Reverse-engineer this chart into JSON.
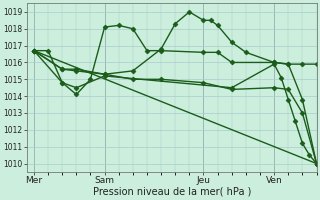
{
  "xlabel": "Pression niveau de la mer( hPa )",
  "bg_color": "#cceedd",
  "grid_color": "#aacccc",
  "line_color": "#1a5c1a",
  "ylim": [
    1009.5,
    1019.5
  ],
  "yticks": [
    1010,
    1011,
    1012,
    1013,
    1014,
    1015,
    1016,
    1017,
    1018,
    1019
  ],
  "xtick_labels": [
    "Mer",
    "Sam",
    "Jeu",
    "Ven"
  ],
  "xtick_positions": [
    0,
    5,
    12,
    17
  ],
  "xlim": [
    -0.5,
    20
  ],
  "lines": [
    {
      "x": [
        0,
        1,
        2,
        3,
        4,
        5,
        6,
        7,
        8,
        9,
        12,
        13,
        14,
        17,
        18,
        19,
        20
      ],
      "y": [
        1016.7,
        1016.7,
        1014.8,
        1014.1,
        1015.0,
        1018.1,
        1018.2,
        1018.0,
        1016.7,
        1016.7,
        1016.6,
        1016.6,
        1016.0,
        1016.0,
        1015.9,
        1015.9,
        1015.9
      ]
    },
    {
      "x": [
        0,
        2,
        3,
        5,
        7,
        9,
        10,
        11,
        12,
        12.5,
        13,
        14,
        15,
        17,
        18,
        19,
        20
      ],
      "y": [
        1016.7,
        1015.6,
        1015.6,
        1015.3,
        1015.5,
        1016.8,
        1018.3,
        1019.0,
        1018.5,
        1018.5,
        1018.2,
        1017.2,
        1016.6,
        1016.0,
        1015.9,
        1013.8,
        1010.0
      ]
    },
    {
      "x": [
        0,
        2,
        3,
        5,
        7,
        9,
        12,
        14,
        17,
        18,
        19,
        20
      ],
      "y": [
        1016.7,
        1015.6,
        1015.5,
        1015.3,
        1015.0,
        1015.0,
        1014.8,
        1014.4,
        1014.5,
        1014.4,
        1013.0,
        1010.0
      ]
    },
    {
      "x": [
        0,
        20
      ],
      "y": [
        1016.7,
        1010.0
      ]
    },
    {
      "x": [
        0,
        2,
        3,
        5,
        14,
        17,
        17.5,
        18,
        18.5,
        19,
        19.5,
        20
      ],
      "y": [
        1016.7,
        1014.8,
        1014.5,
        1015.2,
        1014.5,
        1015.9,
        1015.1,
        1013.8,
        1012.5,
        1011.2,
        1010.5,
        1010.0
      ]
    }
  ]
}
